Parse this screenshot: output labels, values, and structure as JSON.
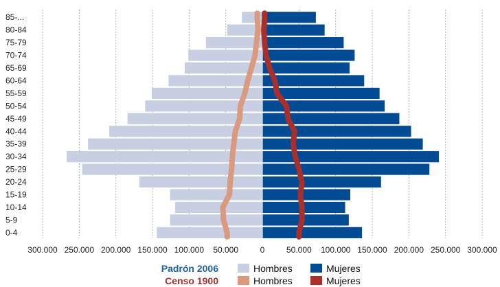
{
  "chart_data": {
    "type": "bar",
    "title": "",
    "xlabel": "",
    "ylabel": "",
    "xlim": [
      -300000,
      300000
    ],
    "grid": true,
    "categories": [
      "0-4",
      "5-9",
      "10-14",
      "15-19",
      "20-24",
      "25-29",
      "30-34",
      "35-39",
      "40-44",
      "45-49",
      "50-54",
      "55-59",
      "60-64",
      "65-69",
      "70-74",
      "75-79",
      "80-84",
      "85-..."
    ],
    "x_ticks": [
      -300000,
      -250000,
      -200000,
      -150000,
      -100000,
      -50000,
      0,
      50000,
      100000,
      150000,
      200000,
      250000,
      300000
    ],
    "x_tick_labels": [
      "300.000",
      "250.000",
      "200.000",
      "150.000",
      "100.000",
      "50.000",
      "0",
      "50.000",
      "100.000",
      "150.000",
      "200.000",
      "250.000",
      "300.000"
    ],
    "series": [
      {
        "group": "Padrón 2006",
        "name": "Hombres",
        "kind": "bar",
        "side": "left",
        "color": "#c8cfe2",
        "values": [
          144000,
          126000,
          119000,
          126000,
          168000,
          246000,
          267000,
          238000,
          209000,
          184000,
          160000,
          151000,
          128000,
          106000,
          101000,
          77000,
          48000,
          28000
        ]
      },
      {
        "group": "Padrón 2006",
        "name": "Mujeres",
        "kind": "bar",
        "side": "right",
        "color": "#004b93",
        "values": [
          136000,
          118000,
          113000,
          120000,
          162000,
          228000,
          241000,
          219000,
          203000,
          187000,
          167000,
          160000,
          139000,
          119000,
          126000,
          111000,
          85000,
          73000
        ]
      },
      {
        "group": "Censo 1900",
        "name": "Hombres",
        "kind": "line",
        "side": "left",
        "color": "#d99a7f",
        "values": [
          48000,
          53000,
          54000,
          45000,
          44000,
          42000,
          41000,
          39000,
          37000,
          31000,
          30000,
          24000,
          20000,
          15000,
          10000,
          8000,
          6000,
          7000
        ]
      },
      {
        "group": "Censo 1900",
        "name": "Mujeres",
        "kind": "line",
        "side": "right",
        "color": "#a8302c",
        "values": [
          50000,
          54000,
          54000,
          52000,
          54000,
          50000,
          45000,
          42000,
          44000,
          35000,
          33000,
          20000,
          17000,
          10000,
          5000,
          3000,
          2000,
          3000
        ]
      }
    ],
    "legend": {
      "placement": "bottom",
      "groups": [
        {
          "title": "Padrón 2006",
          "title_color": "#1f5fa6",
          "items": [
            {
              "label": "Hombres",
              "color": "#c8cfe2"
            },
            {
              "label": "Mujeres",
              "color": "#004b93"
            }
          ]
        },
        {
          "title": "Censo 1900",
          "title_color": "#a8302c",
          "items": [
            {
              "label": "Hombres",
              "color": "#d99a7f"
            },
            {
              "label": "Mujeres",
              "color": "#a8302c"
            }
          ]
        }
      ]
    }
  }
}
